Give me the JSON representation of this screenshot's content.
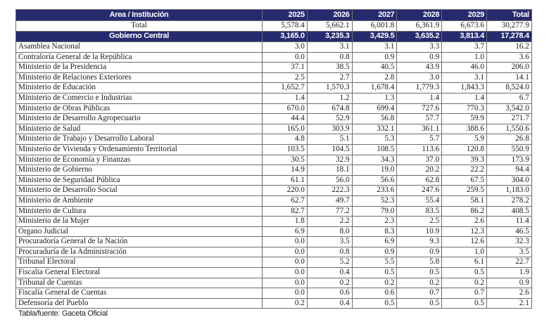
{
  "table": {
    "header": [
      "Area / Institución",
      "2025",
      "2026",
      "2027",
      "2028",
      "2029",
      "Total"
    ],
    "total_row": {
      "label": "Total",
      "values": [
        "5,578.4",
        "5,662.1",
        "6,001.8",
        "6,361.9",
        "6,673.6",
        "30,277.9"
      ]
    },
    "group_row": {
      "label": "Gobierno Central",
      "values": [
        "3,165.0",
        "3,235.3",
        "3,429.5",
        "3,635.2",
        "3,813.4",
        "17,278.4"
      ]
    },
    "rows": [
      {
        "label": "Asamblea Nacional",
        "values": [
          "3.0",
          "3.1",
          "3.1",
          "3.3",
          "3.7",
          "16.2"
        ]
      },
      {
        "label": "Contraloría General de la República",
        "values": [
          "0.0",
          "0.8",
          "0.9",
          "0.9",
          "1.0",
          "3.6"
        ]
      },
      {
        "label": "Ministerio de la Presidencia",
        "values": [
          "37.1",
          "38.5",
          "40.5",
          "43.9",
          "46.0",
          "206.0"
        ]
      },
      {
        "label": "Ministerio de Relaciones Exteriores",
        "values": [
          "2.5",
          "2.7",
          "2.8",
          "3.0",
          "3.1",
          "14.1"
        ]
      },
      {
        "label": "Ministerio de Educación",
        "values": [
          "1,652.7",
          "1,570.3",
          "1,678.4",
          "1,779.3",
          "1,843.3",
          "8,524.0"
        ]
      },
      {
        "label": "Ministerio de Comercio e Industrias",
        "values": [
          "1.4",
          "1.2",
          "1.3",
          "1.4",
          "1.4",
          "6.7"
        ]
      },
      {
        "label": "Ministerio de Obras Públicas",
        "values": [
          "670.0",
          "674.8",
          "699.4",
          "727.6",
          "770.3",
          "3,542.0"
        ]
      },
      {
        "label": "Ministerio de Desarrollo Agropecuario",
        "values": [
          "44.4",
          "52.9",
          "56.8",
          "57.7",
          "59.9",
          "271.7"
        ]
      },
      {
        "label": "Ministerio de Salud",
        "values": [
          "165.0",
          "303.9",
          "332.1",
          "361.1",
          "388.6",
          "1,550.6"
        ]
      },
      {
        "label": "Ministerio de Trabajo y Desarrollo Laboral",
        "values": [
          "4.8",
          "5.1",
          "5.3",
          "5.7",
          "5.9",
          "26.8"
        ]
      },
      {
        "label": "Ministerio de Vivienda y Ordenamiento Territorial",
        "values": [
          "103.5",
          "104.5",
          "108.5",
          "113.6",
          "120.8",
          "550.9"
        ]
      },
      {
        "label": "Ministerio de Economía y Finanzas",
        "values": [
          "30.5",
          "32.9",
          "34.3",
          "37.0",
          "39.3",
          "173.9"
        ]
      },
      {
        "label": "Ministerio de Gobierno",
        "values": [
          "14.9",
          "18.1",
          "19.0",
          "20.2",
          "22.2",
          "94.4"
        ]
      },
      {
        "label": "Ministerio de Seguridad Pública",
        "values": [
          "61.1",
          "56.0",
          "56.6",
          "62.8",
          "67.5",
          "304.0"
        ]
      },
      {
        "label": "Ministerio de Desarrollo Social",
        "values": [
          "220.0",
          "222.3",
          "233.6",
          "247.6",
          "259.5",
          "1,183.0"
        ]
      },
      {
        "label": "Ministerio de Ambiente",
        "values": [
          "62.7",
          "49.7",
          "52.3",
          "55.4",
          "58.1",
          "278.2"
        ]
      },
      {
        "label": "Ministerio de Cultura",
        "values": [
          "82.7",
          "77.2",
          "79.0",
          "83.5",
          "86.2",
          "408.5"
        ]
      },
      {
        "label": "Ministerio de la Mujer",
        "values": [
          "1.8",
          "2.2",
          "2.3",
          "2.5",
          "2.6",
          "11.4"
        ]
      },
      {
        "label": "Órgano Judicial",
        "values": [
          "6.9",
          "8.0",
          "8.3",
          "10.9",
          "12.3",
          "46.5"
        ]
      },
      {
        "label": "Procuradoría General de la Nación",
        "values": [
          "0.0",
          "3.5",
          "6.9",
          "9.3",
          "12.6",
          "32.3"
        ]
      },
      {
        "label": "Procuraduría de la Administración",
        "values": [
          "0.0",
          "0.8",
          "0.9",
          "0.9",
          "1.0",
          "3.5"
        ]
      },
      {
        "label": "Tribunal Electoral",
        "values": [
          "0.0",
          "5.2",
          "5.5",
          "5.8",
          "6.1",
          "22.7"
        ]
      },
      {
        "label": "Fiscalia General Electoral",
        "values": [
          "0.0",
          "0.4",
          "0.5",
          "0.5",
          "0.5",
          "1.9"
        ]
      },
      {
        "label": "Tribunal de Cuentas",
        "values": [
          "0.0",
          "0.2",
          "0.2",
          "0.2",
          "0.2",
          "0.9"
        ]
      },
      {
        "label": "Fiscalía General de Cuentas",
        "values": [
          "0.0",
          "0.6",
          "0.6",
          "0.7",
          "0.7",
          "2.6"
        ]
      },
      {
        "label": "Defensoría del Pueblo",
        "values": [
          "0.2",
          "0.4",
          "0.5",
          "0.5",
          "0.5",
          "2.1"
        ]
      }
    ]
  },
  "caption": "Tabla/fuente: Gaceta Oficial",
  "colors": {
    "header_bg": "#262a6e",
    "header_text": "#ffffff"
  }
}
